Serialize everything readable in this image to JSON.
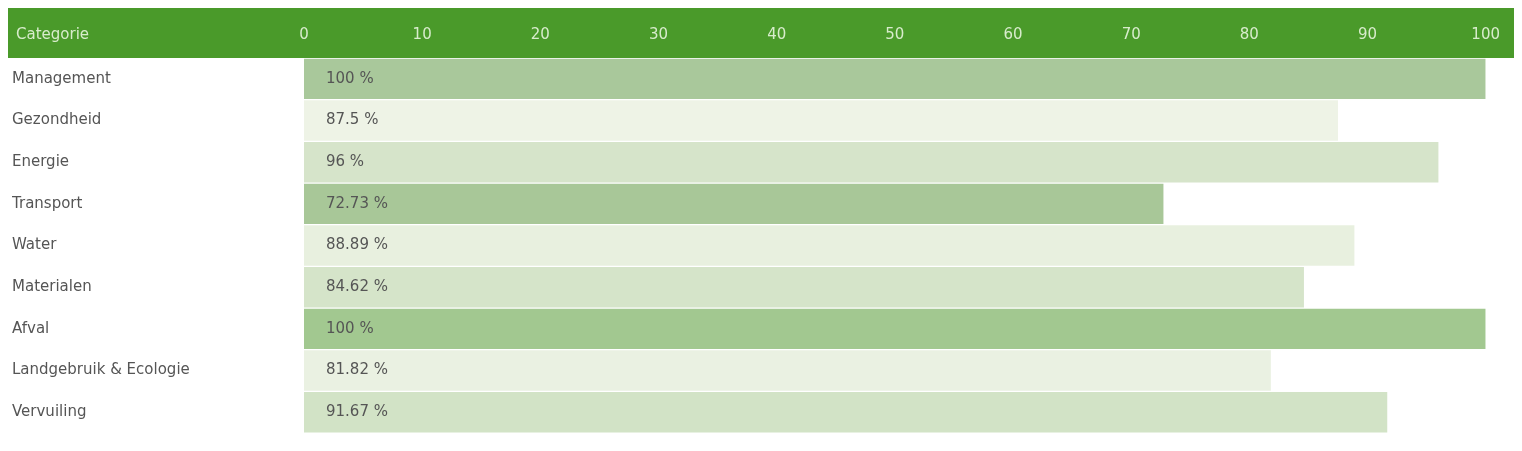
{
  "chart_data": {
    "type": "bar",
    "orientation": "horizontal",
    "ylabel": "Categorie",
    "categories": [
      "Management",
      "Gezondheid",
      "Energie",
      "Transport",
      "Water",
      "Materialen",
      "Afval",
      "Landgebruik & Ecologie",
      "Vervuiling"
    ],
    "values": [
      100,
      87.5,
      96,
      72.73,
      88.89,
      84.62,
      100,
      81.82,
      91.67
    ],
    "value_labels": [
      "100 %",
      "87.5 %",
      "96 %",
      "72.73 %",
      "88.89 %",
      "84.62 %",
      "100 %",
      "81.82 %",
      "91.67 %"
    ],
    "colors": [
      "#a9c89b",
      "#eef3e6",
      "#d6e4ca",
      "#a8c798",
      "#e8f0df",
      "#d5e4c9",
      "#a2c890",
      "#eaf1e2",
      "#d2e3c6"
    ],
    "xlim": [
      0,
      100
    ],
    "xticks": [
      0,
      10,
      20,
      30,
      40,
      50,
      60,
      70,
      80,
      90,
      100
    ],
    "grid": false,
    "legend": false
  }
}
